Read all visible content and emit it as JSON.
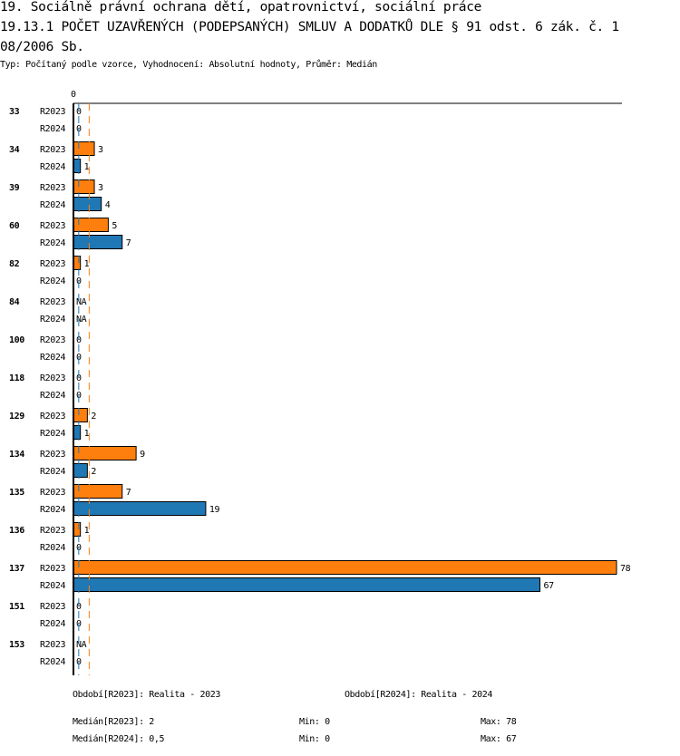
{
  "header": {
    "title_line1": "19. Sociálně právní ochrana dětí, opatrovnictví, sociální práce",
    "title_line2": "19.13.1 POČET UZAVŘENÝCH (PODEPSANÝCH) SMLUV A DODATKŮ DLE § 91 odst. 6 zák. č. 1",
    "title_line3": "08/2006 Sb.",
    "subtitle": "Typ: Počítaný podle vzorce, Vyhodnocení: Absolutní hodnoty, Průměr: Medián"
  },
  "chart_data": {
    "type": "bar",
    "orientation": "horizontal",
    "axis_zero_label": "0",
    "xlim": [
      0,
      78
    ],
    "categories": [
      "33",
      "34",
      "39",
      "60",
      "82",
      "84",
      "100",
      "118",
      "129",
      "134",
      "135",
      "136",
      "137",
      "151",
      "153"
    ],
    "series": [
      {
        "name": "R2023",
        "color": "#ff7f0e",
        "values": [
          0,
          3,
          3,
          5,
          1,
          "NA",
          0,
          0,
          2,
          9,
          7,
          1,
          78,
          0,
          "NA"
        ]
      },
      {
        "name": "R2024",
        "color": "#1f77b4",
        "values": [
          0,
          1,
          4,
          7,
          0,
          "NA",
          0,
          0,
          1,
          2,
          19,
          0,
          67,
          0,
          0
        ]
      }
    ],
    "medians": {
      "R2023": 2,
      "R2024": 0.5
    }
  },
  "footer": {
    "period_2023": "Období[R2023]: Realita - 2023",
    "period_2024": "Období[R2024]: Realita - 2024",
    "median_2023": "Medián[R2023]: 2",
    "min_2023": "Min: 0",
    "max_2023": "Max: 78",
    "median_2024": "Medián[R2024]: 0,5",
    "min_2024": "Min: 0",
    "max_2024": "Max: 67"
  }
}
